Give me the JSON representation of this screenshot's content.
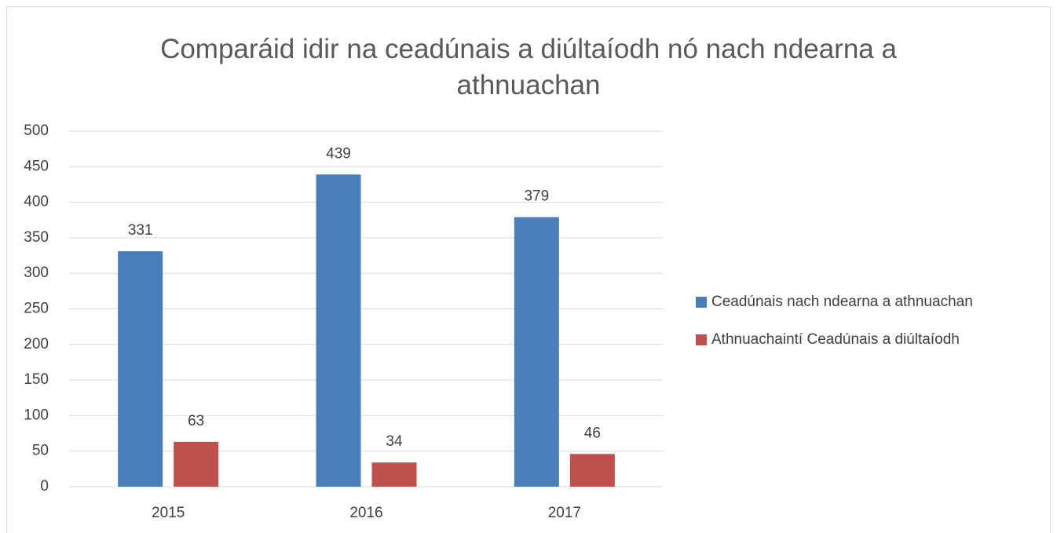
{
  "chart_data": {
    "type": "bar",
    "title": "Comparáid idir na ceadúnais a diúltaíodh nó nach ndearna a athnuachan",
    "categories": [
      "2015",
      "2016",
      "2017"
    ],
    "series": [
      {
        "name": "Ceadúnais nach ndearna a athnuachan",
        "color": "#4a7ebb",
        "values": [
          331,
          439,
          379
        ]
      },
      {
        "name": "Athnuachaintí Ceadúnais a diúltaíodh",
        "color": "#c0504d",
        "values": [
          63,
          34,
          46
        ]
      }
    ],
    "ylim": [
      0,
      500
    ],
    "yticks": [
      0,
      50,
      100,
      150,
      200,
      250,
      300,
      350,
      400,
      450,
      500
    ],
    "grid": true,
    "legend": "right"
  }
}
